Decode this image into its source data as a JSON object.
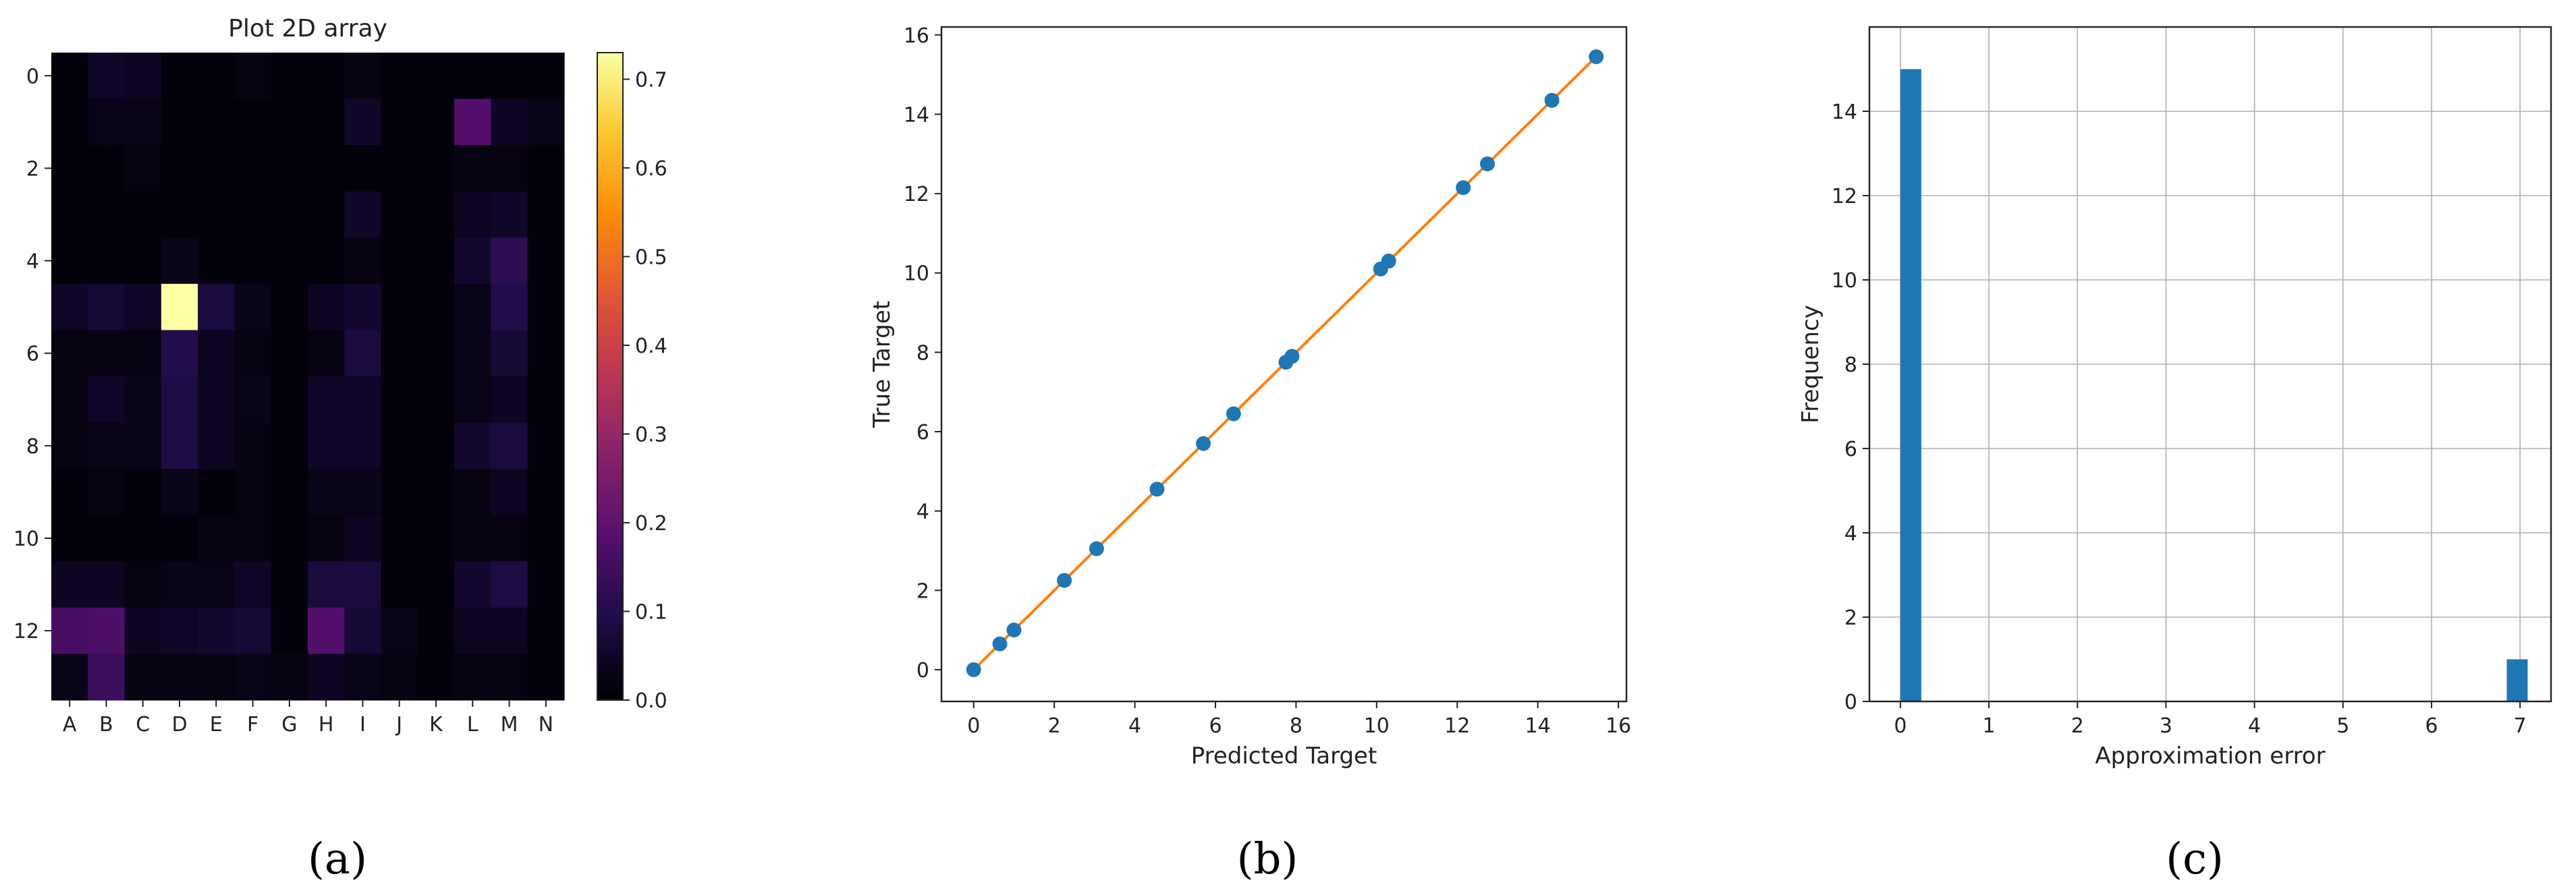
{
  "chart_data": [
    {
      "type": "heatmap",
      "panel_label": "(a)",
      "title": "Plot 2D array",
      "x_tick_labels": [
        "A",
        "B",
        "C",
        "D",
        "E",
        "F",
        "G",
        "H",
        "I",
        "J",
        "K",
        "L",
        "M",
        "N"
      ],
      "y_tick_labels": [
        "0",
        "2",
        "4",
        "6",
        "8",
        "10",
        "12"
      ],
      "colorbar": {
        "colormap": "inferno",
        "range": [
          0.0,
          0.73
        ],
        "tick_labels": [
          "0.0",
          "0.1",
          "0.2",
          "0.3",
          "0.4",
          "0.5",
          "0.6",
          "0.7"
        ]
      },
      "rows": 14,
      "cols": 14,
      "values": [
        [
          0.01,
          0.05,
          0.04,
          0.01,
          0.01,
          0.02,
          0.01,
          0.01,
          0.02,
          0.01,
          0.01,
          0.01,
          0.01,
          0.01
        ],
        [
          0.01,
          0.03,
          0.03,
          0.01,
          0.01,
          0.01,
          0.01,
          0.01,
          0.05,
          0.01,
          0.01,
          0.18,
          0.04,
          0.03
        ],
        [
          0.01,
          0.01,
          0.02,
          0.01,
          0.01,
          0.01,
          0.01,
          0.01,
          0.01,
          0.01,
          0.01,
          0.02,
          0.02,
          0.01
        ],
        [
          0.01,
          0.01,
          0.01,
          0.01,
          0.01,
          0.01,
          0.01,
          0.01,
          0.05,
          0.01,
          0.01,
          0.04,
          0.05,
          0.01
        ],
        [
          0.01,
          0.01,
          0.01,
          0.03,
          0.01,
          0.01,
          0.01,
          0.01,
          0.02,
          0.01,
          0.01,
          0.06,
          0.12,
          0.01
        ],
        [
          0.05,
          0.07,
          0.05,
          0.73,
          0.08,
          0.03,
          0.01,
          0.04,
          0.06,
          0.01,
          0.01,
          0.03,
          0.1,
          0.01
        ],
        [
          0.02,
          0.02,
          0.02,
          0.1,
          0.04,
          0.02,
          0.01,
          0.02,
          0.08,
          0.01,
          0.01,
          0.03,
          0.07,
          0.01
        ],
        [
          0.02,
          0.05,
          0.03,
          0.09,
          0.04,
          0.03,
          0.01,
          0.05,
          0.05,
          0.01,
          0.01,
          0.03,
          0.04,
          0.01
        ],
        [
          0.02,
          0.03,
          0.03,
          0.09,
          0.04,
          0.02,
          0.01,
          0.05,
          0.05,
          0.01,
          0.01,
          0.06,
          0.08,
          0.01
        ],
        [
          0.01,
          0.02,
          0.01,
          0.03,
          0.01,
          0.02,
          0.01,
          0.03,
          0.03,
          0.01,
          0.01,
          0.02,
          0.04,
          0.01
        ],
        [
          0.01,
          0.01,
          0.01,
          0.01,
          0.02,
          0.02,
          0.01,
          0.02,
          0.04,
          0.01,
          0.01,
          0.02,
          0.02,
          0.01
        ],
        [
          0.04,
          0.04,
          0.02,
          0.03,
          0.03,
          0.05,
          0.01,
          0.08,
          0.08,
          0.01,
          0.01,
          0.06,
          0.09,
          0.01
        ],
        [
          0.16,
          0.17,
          0.04,
          0.05,
          0.06,
          0.07,
          0.01,
          0.18,
          0.07,
          0.03,
          0.01,
          0.04,
          0.04,
          0.01
        ],
        [
          0.03,
          0.14,
          0.02,
          0.02,
          0.02,
          0.03,
          0.02,
          0.04,
          0.03,
          0.02,
          0.01,
          0.02,
          0.02,
          0.01
        ]
      ]
    },
    {
      "type": "line",
      "panel_label": "(b)",
      "xlabel": "Predicted Target",
      "ylabel": "True Target",
      "xlim": [
        -0.8,
        16.2
      ],
      "ylim": [
        -0.8,
        16.2
      ],
      "x_ticks": [
        0,
        2,
        4,
        6,
        8,
        10,
        12,
        14,
        16
      ],
      "y_ticks": [
        0,
        2,
        4,
        6,
        8,
        10,
        12,
        14,
        16
      ],
      "scatter_points": [
        [
          0.0,
          0.0
        ],
        [
          0.65,
          0.65
        ],
        [
          1.0,
          1.0
        ],
        [
          2.25,
          2.25
        ],
        [
          3.05,
          3.05
        ],
        [
          4.55,
          4.55
        ],
        [
          5.7,
          5.7
        ],
        [
          6.45,
          6.45
        ],
        [
          7.75,
          7.75
        ],
        [
          7.9,
          7.9
        ],
        [
          10.1,
          10.1
        ],
        [
          10.3,
          10.3
        ],
        [
          12.15,
          12.15
        ],
        [
          12.75,
          12.75
        ],
        [
          14.35,
          14.35
        ],
        [
          15.45,
          15.45
        ]
      ],
      "line_points": [
        [
          0.0,
          0.0
        ],
        [
          15.45,
          15.45
        ]
      ],
      "scatter_color": "#1f77b4",
      "line_color": "#ff7f0e"
    },
    {
      "type": "bar",
      "panel_label": "(c)",
      "xlabel": "Approximation error",
      "ylabel": "Frequency",
      "xlim": [
        -0.35,
        7.35
      ],
      "ylim": [
        0,
        16.0
      ],
      "x_ticks": [
        0,
        1,
        2,
        3,
        4,
        5,
        6,
        7
      ],
      "y_ticks": [
        0,
        2,
        4,
        6,
        8,
        10,
        12,
        14
      ],
      "grid": true,
      "bins": [
        {
          "x_start": 0.0,
          "x_end": 0.236,
          "count": 15
        },
        {
          "x_start": 6.85,
          "x_end": 7.086,
          "count": 1
        }
      ],
      "bar_color": "#1f77b4"
    }
  ]
}
